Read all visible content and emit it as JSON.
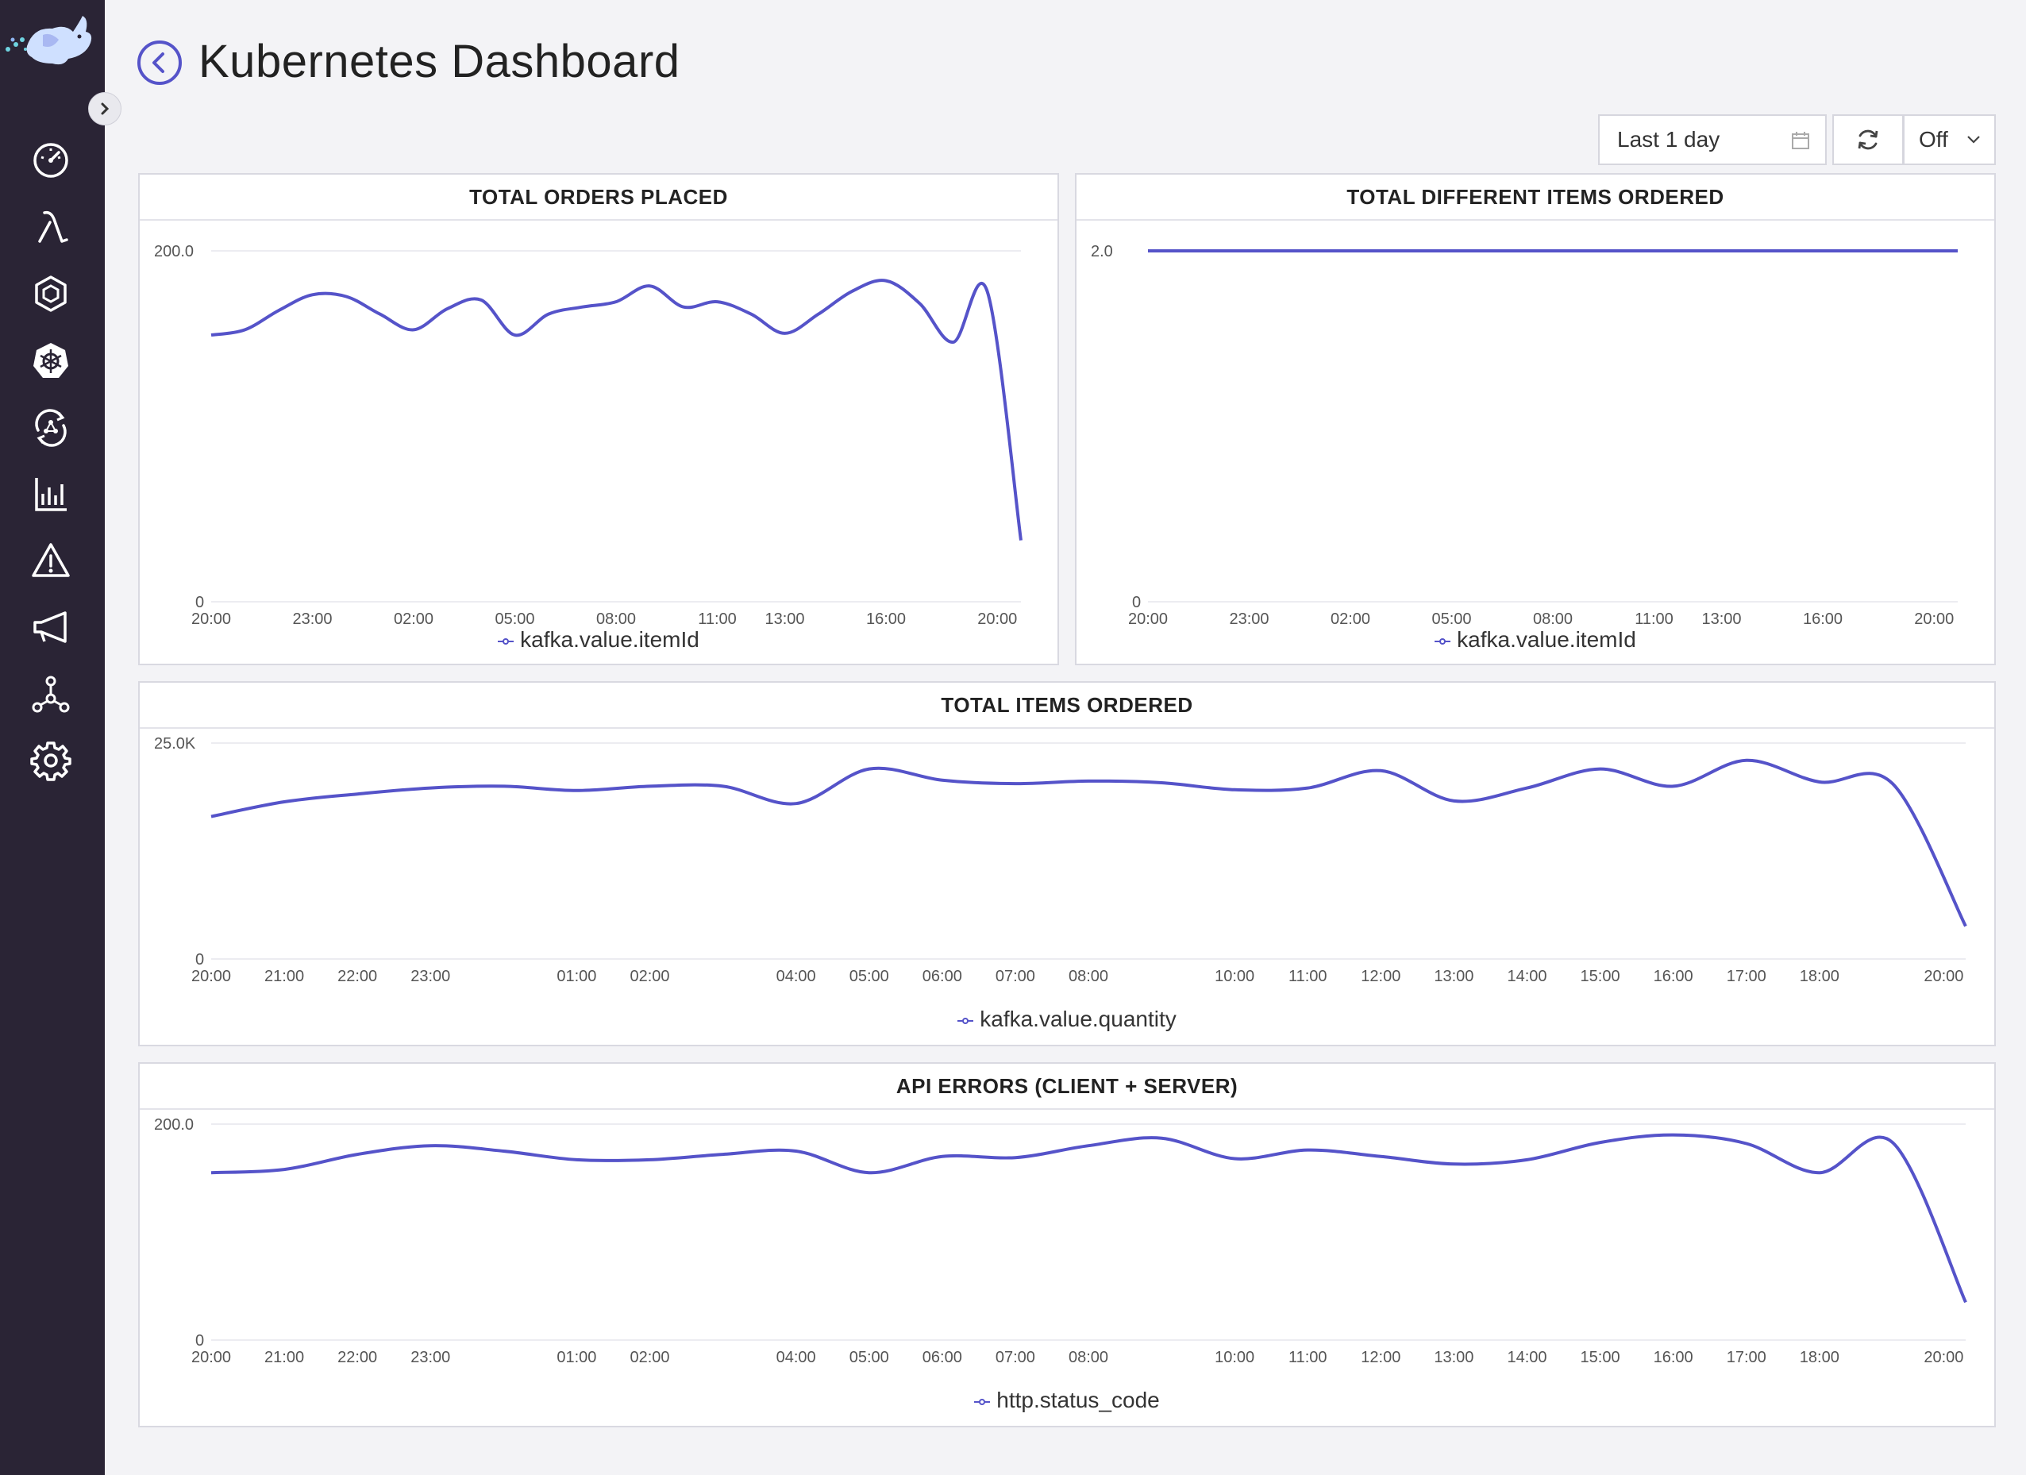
{
  "header": {
    "title": "Kubernetes Dashboard"
  },
  "toolbar": {
    "range_label": "Last 1 day",
    "refresh_interval": "Off"
  },
  "sidebar": {
    "items": [
      {
        "icon": "speedometer-icon"
      },
      {
        "icon": "lambda-icon"
      },
      {
        "icon": "hexagon-icon"
      },
      {
        "icon": "kubernetes-helm-icon"
      },
      {
        "icon": "cycle-network-icon"
      },
      {
        "icon": "bar-chart-icon"
      },
      {
        "icon": "warning-triangle-icon"
      },
      {
        "icon": "megaphone-icon"
      },
      {
        "icon": "graph-nodes-icon"
      },
      {
        "icon": "gear-icon"
      }
    ]
  },
  "colors": {
    "series": "#5553c9",
    "sidebar": "#2a2435",
    "accent": "#5553c9"
  },
  "panels": [
    {
      "title": "TOTAL ORDERS PLACED",
      "legend": "kafka.value.itemId"
    },
    {
      "title": "TOTAL DIFFERENT ITEMS ORDERED",
      "legend": "kafka.value.itemId"
    },
    {
      "title": "TOTAL ITEMS ORDERED",
      "legend": "kafka.value.quantity"
    },
    {
      "title": "API ERRORS (CLIENT + SERVER)",
      "legend": "http.status_code"
    }
  ],
  "chart_data": [
    {
      "type": "line",
      "title": "TOTAL ORDERS PLACED",
      "ytick_labels": [
        "0",
        "200.0"
      ],
      "ylim": [
        0,
        200
      ],
      "xlim": [
        0,
        24
      ],
      "xtick_labels": [
        "20:00",
        "23:00",
        "02:00",
        "05:00",
        "08:00",
        "11:00",
        "13:00",
        "16:00",
        "20:00"
      ],
      "xtick_positions": [
        0,
        3,
        6,
        9,
        12,
        15,
        17,
        20,
        23.3
      ],
      "series": [
        {
          "name": "kafka.value.itemId",
          "x": [
            0,
            1,
            2,
            3,
            4,
            5,
            6,
            7,
            8,
            9,
            10,
            11,
            12,
            13,
            14,
            15,
            16,
            17,
            18,
            19,
            20,
            21,
            22,
            23,
            24
          ],
          "values": [
            152,
            155,
            166,
            175,
            174,
            164,
            155,
            167,
            172,
            152,
            164,
            168,
            171,
            180,
            168,
            171,
            164,
            153,
            164,
            177,
            183,
            170,
            148,
            177,
            35
          ]
        }
      ],
      "grid": true
    },
    {
      "type": "line",
      "title": "TOTAL DIFFERENT ITEMS ORDERED",
      "ytick_labels": [
        "0",
        "2.0"
      ],
      "ylim": [
        0,
        2
      ],
      "xlim": [
        0,
        24
      ],
      "xtick_labels": [
        "20:00",
        "23:00",
        "02:00",
        "05:00",
        "08:00",
        "11:00",
        "13:00",
        "16:00",
        "20:00"
      ],
      "xtick_positions": [
        0,
        3,
        6,
        9,
        12,
        15,
        17,
        20,
        23.3
      ],
      "series": [
        {
          "name": "kafka.value.itemId",
          "x": [
            0,
            24
          ],
          "values": [
            2,
            2
          ]
        }
      ],
      "grid": true
    },
    {
      "type": "line",
      "title": "TOTAL ITEMS ORDERED",
      "ytick_labels": [
        "0",
        "25.0K"
      ],
      "ylim": [
        0,
        25000
      ],
      "xlim": [
        0,
        24
      ],
      "xtick_labels": [
        "20:00",
        "21:00",
        "22:00",
        "23:00",
        "01:00",
        "02:00",
        "04:00",
        "05:00",
        "06:00",
        "07:00",
        "08:00",
        "10:00",
        "11:00",
        "12:00",
        "13:00",
        "14:00",
        "15:00",
        "16:00",
        "17:00",
        "18:00",
        "20:00"
      ],
      "xtick_positions": [
        0,
        1,
        2,
        3,
        5,
        6,
        8,
        9,
        10,
        11,
        12,
        14,
        15,
        16,
        17,
        18,
        19,
        20,
        21,
        22,
        23.7
      ],
      "series": [
        {
          "name": "kafka.value.quantity",
          "x": [
            0,
            1,
            2,
            3,
            4,
            5,
            6,
            7,
            8,
            9,
            10,
            11,
            12,
            13,
            14,
            15,
            16,
            17,
            18,
            19,
            20,
            21,
            22,
            23,
            24
          ],
          "values": [
            16500,
            18200,
            19100,
            19800,
            20000,
            19500,
            20000,
            20000,
            18000,
            22000,
            20700,
            20300,
            20600,
            20400,
            19600,
            19800,
            21800,
            18300,
            19800,
            22000,
            20000,
            23000,
            20500,
            20300,
            3800
          ]
        }
      ],
      "grid": true
    },
    {
      "type": "line",
      "title": "API ERRORS (CLIENT + SERVER)",
      "ytick_labels": [
        "0",
        "200.0"
      ],
      "ylim": [
        0,
        200
      ],
      "xlim": [
        0,
        24
      ],
      "xtick_labels": [
        "20:00",
        "21:00",
        "22:00",
        "23:00",
        "01:00",
        "02:00",
        "04:00",
        "05:00",
        "06:00",
        "07:00",
        "08:00",
        "10:00",
        "11:00",
        "12:00",
        "13:00",
        "14:00",
        "15:00",
        "16:00",
        "17:00",
        "18:00",
        "20:00"
      ],
      "xtick_positions": [
        0,
        1,
        2,
        3,
        5,
        6,
        8,
        9,
        10,
        11,
        12,
        14,
        15,
        16,
        17,
        18,
        19,
        20,
        21,
        22,
        23.7
      ],
      "series": [
        {
          "name": "http.status_code",
          "x": [
            0,
            1,
            2,
            3,
            4,
            5,
            6,
            7,
            8,
            9,
            10,
            11,
            12,
            13,
            14,
            15,
            16,
            17,
            18,
            19,
            20,
            21,
            22,
            23,
            24
          ],
          "values": [
            155,
            158,
            172,
            180,
            175,
            167,
            167,
            172,
            175,
            155,
            170,
            169,
            180,
            187,
            168,
            176,
            170,
            163,
            167,
            183,
            190,
            182,
            155,
            183,
            35
          ]
        }
      ],
      "grid": true
    }
  ]
}
